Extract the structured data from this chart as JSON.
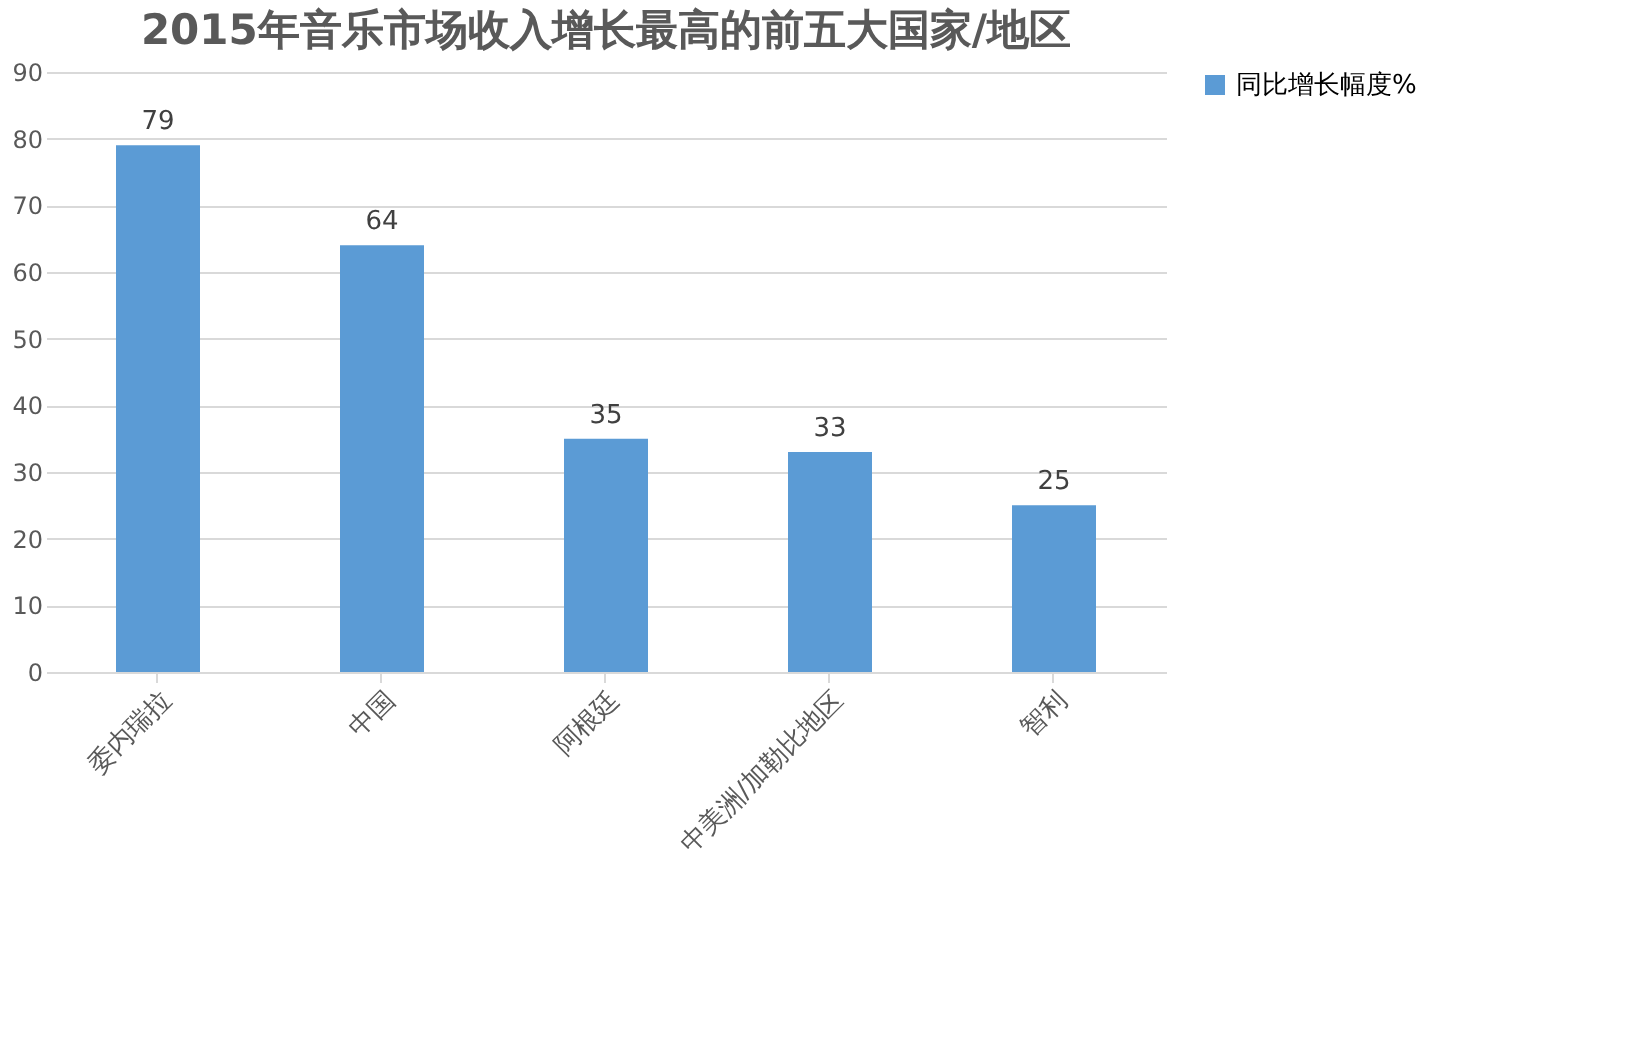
{
  "chart_data": {
    "type": "bar",
    "title": "2015年音乐市场收入增长最高的前五大国家/地区",
    "categories": [
      "委内瑞拉",
      "中国",
      "阿根廷",
      "中美洲/加勒比地区",
      "智利"
    ],
    "series": [
      {
        "name": "同比增长幅度%",
        "color": "#5b9bd5",
        "values": [
          79,
          64,
          35,
          33,
          25
        ]
      }
    ],
    "ylim": [
      0,
      90
    ],
    "yticks": [
      0,
      10,
      20,
      30,
      40,
      50,
      60,
      70,
      80,
      90
    ],
    "grid": "y",
    "legend": "right",
    "data_labels": true
  }
}
